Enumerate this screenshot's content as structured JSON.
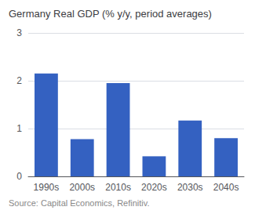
{
  "chart_data": {
    "type": "bar",
    "title": "Germany Real GDP (% y/y, period averages)",
    "annotation": "Source: Capital Economics, Refinitiv.",
    "categories": [
      "1990s",
      "2000s",
      "2010s",
      "2020s",
      "2030s",
      "2040s"
    ],
    "values": [
      2.15,
      0.78,
      1.95,
      0.42,
      1.17,
      0.8
    ],
    "color": "#3461C1",
    "ylim": [
      0,
      3
    ],
    "yticks": [
      0,
      1,
      2,
      3
    ],
    "grid": true
  }
}
